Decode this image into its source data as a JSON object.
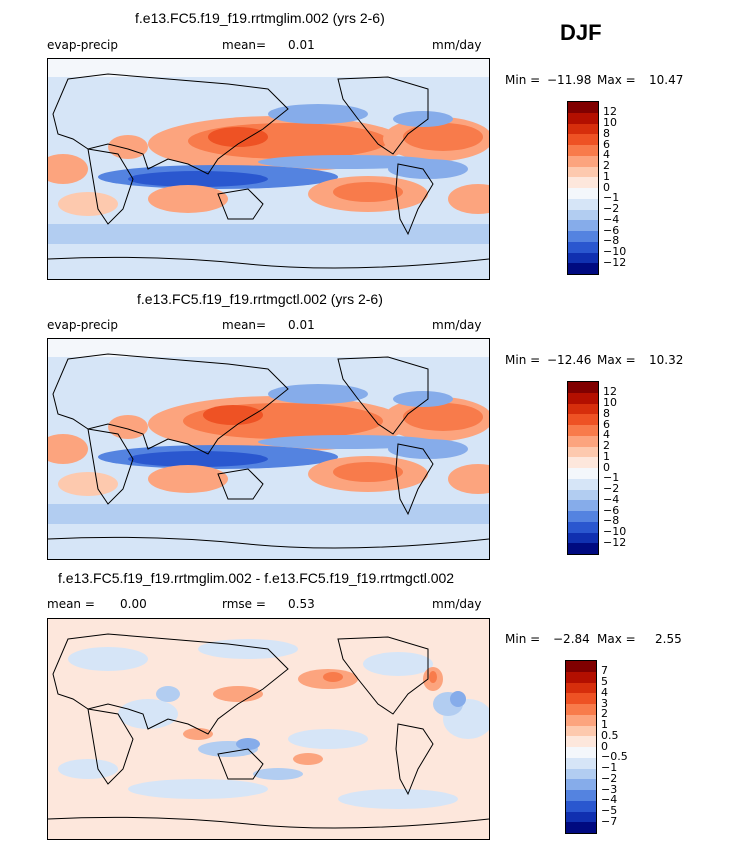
{
  "season": "DJF",
  "chart_data": [
    {
      "type": "heatmap",
      "title": "f.e13.FC5.f19_f19.rrtmglim.002 (yrs 2-6)",
      "variable": "evap-precip",
      "mean_label": "mean=",
      "mean_value": "0.01",
      "units": "mm/day",
      "min_label": "Min =",
      "min_value": "−11.98",
      "max_label": "Max =",
      "max_value": "10.47",
      "colorbar_levels": [
        "12",
        "10",
        "8",
        "6",
        "4",
        "2",
        "1",
        "0",
        "−1",
        "−2",
        "−4",
        "−6",
        "−8",
        "−10",
        "−12"
      ],
      "colorbar_colors": [
        "#800000",
        "#b30f00",
        "#d62e0c",
        "#ee5224",
        "#f87b4b",
        "#fca47e",
        "#fdc9ae",
        "#fde7dc",
        "#f4f7fb",
        "#d6e5f7",
        "#b2cdf1",
        "#86acea",
        "#5483e0",
        "#2a57cf",
        "#1030b0",
        "#000a80"
      ]
    },
    {
      "type": "heatmap",
      "title": "f.e13.FC5.f19_f19.rrtmgctl.002 (yrs 2-6)",
      "variable": "evap-precip",
      "mean_label": "mean=",
      "mean_value": "0.01",
      "units": "mm/day",
      "min_label": "Min =",
      "min_value": "−12.46",
      "max_label": "Max =",
      "max_value": "10.32",
      "colorbar_levels": [
        "12",
        "10",
        "8",
        "6",
        "4",
        "2",
        "1",
        "0",
        "−1",
        "−2",
        "−4",
        "−6",
        "−8",
        "−10",
        "−12"
      ],
      "colorbar_colors": [
        "#800000",
        "#b30f00",
        "#d62e0c",
        "#ee5224",
        "#f87b4b",
        "#fca47e",
        "#fdc9ae",
        "#fde7dc",
        "#f4f7fb",
        "#d6e5f7",
        "#b2cdf1",
        "#86acea",
        "#5483e0",
        "#2a57cf",
        "#1030b0",
        "#000a80"
      ]
    },
    {
      "type": "heatmap",
      "title": "f.e13.FC5.f19_f19.rrtmglim.002 - f.e13.FC5.f19_f19.rrtmgctl.002",
      "mean_label": "mean =",
      "mean_value": "0.00",
      "rmse_label": "rmse =",
      "rmse_value": "0.53",
      "units": "mm/day",
      "min_label": "Min =",
      "min_value": "−2.84",
      "max_label": "Max =",
      "max_value": "2.55",
      "colorbar_levels": [
        "7",
        "5",
        "4",
        "3",
        "2",
        "1",
        "0.5",
        "0",
        "−0.5",
        "−1",
        "−2",
        "−3",
        "−4",
        "−5",
        "−7"
      ],
      "colorbar_colors": [
        "#800000",
        "#b30f00",
        "#d62e0c",
        "#ee5224",
        "#f87b4b",
        "#fca47e",
        "#fdc9ae",
        "#fde7dc",
        "#f4f7fb",
        "#d6e5f7",
        "#b2cdf1",
        "#86acea",
        "#5483e0",
        "#2a57cf",
        "#1030b0",
        "#000a80"
      ]
    }
  ]
}
